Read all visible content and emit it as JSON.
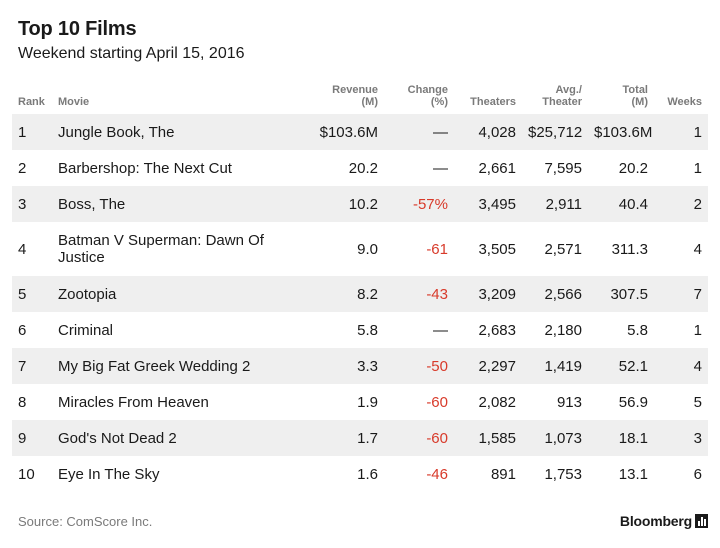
{
  "title": "Top 10 Films",
  "subtitle": "Weekend starting April 15, 2016",
  "columns": {
    "rank": "Rank",
    "movie": "Movie",
    "revenue": [
      "Revenue",
      "(M)"
    ],
    "change": [
      "Change",
      "(%)"
    ],
    "theaters": "Theaters",
    "avg": [
      "Avg./",
      "Theater"
    ],
    "total": [
      "Total",
      "(M)"
    ],
    "weeks": "Weeks"
  },
  "rows": [
    {
      "rank": "1",
      "movie": "Jungle Book, The",
      "revenue": "$103.6M",
      "change": "—",
      "theaters": "4,028",
      "avg": "$25,712",
      "total": "$103.6M",
      "weeks": "1"
    },
    {
      "rank": "2",
      "movie": "Barbershop: The Next Cut",
      "revenue": "20.2",
      "change": "—",
      "theaters": "2,661",
      "avg": "7,595",
      "total": "20.2",
      "weeks": "1"
    },
    {
      "rank": "3",
      "movie": "Boss, The",
      "revenue": "10.2",
      "change": "-57%",
      "theaters": "3,495",
      "avg": "2,911",
      "total": "40.4",
      "weeks": "2"
    },
    {
      "rank": "4",
      "movie": "Batman V Superman: Dawn Of Justice",
      "revenue": "9.0",
      "change": "-61",
      "theaters": "3,505",
      "avg": "2,571",
      "total": "311.3",
      "weeks": "4"
    },
    {
      "rank": "5",
      "movie": "Zootopia",
      "revenue": "8.2",
      "change": "-43",
      "theaters": "3,209",
      "avg": "2,566",
      "total": "307.5",
      "weeks": "7"
    },
    {
      "rank": "6",
      "movie": "Criminal",
      "revenue": "5.8",
      "change": "—",
      "theaters": "2,683",
      "avg": "2,180",
      "total": "5.8",
      "weeks": "1"
    },
    {
      "rank": "7",
      "movie": "My Big Fat Greek Wedding 2",
      "revenue": "3.3",
      "change": "-50",
      "theaters": "2,297",
      "avg": "1,419",
      "total": "52.1",
      "weeks": "4"
    },
    {
      "rank": "8",
      "movie": "Miracles From Heaven",
      "revenue": "1.9",
      "change": "-60",
      "theaters": "2,082",
      "avg": "913",
      "total": "56.9",
      "weeks": "5"
    },
    {
      "rank": "9",
      "movie": "God's Not Dead 2",
      "revenue": "1.7",
      "change": "-60",
      "theaters": "1,585",
      "avg": "1,073",
      "total": "18.1",
      "weeks": "3"
    },
    {
      "rank": "10",
      "movie": "Eye In The Sky",
      "revenue": "1.6",
      "change": "-46",
      "theaters": "891",
      "avg": "1,753",
      "total": "13.1",
      "weeks": "6"
    }
  ],
  "source": "Source: ComScore Inc.",
  "brand": "Bloomberg",
  "brand_icon": "bloomberg-logo-icon",
  "colors": {
    "negative": "#d83a2a",
    "shade": "#efefef",
    "header": "#7a7a7a"
  }
}
